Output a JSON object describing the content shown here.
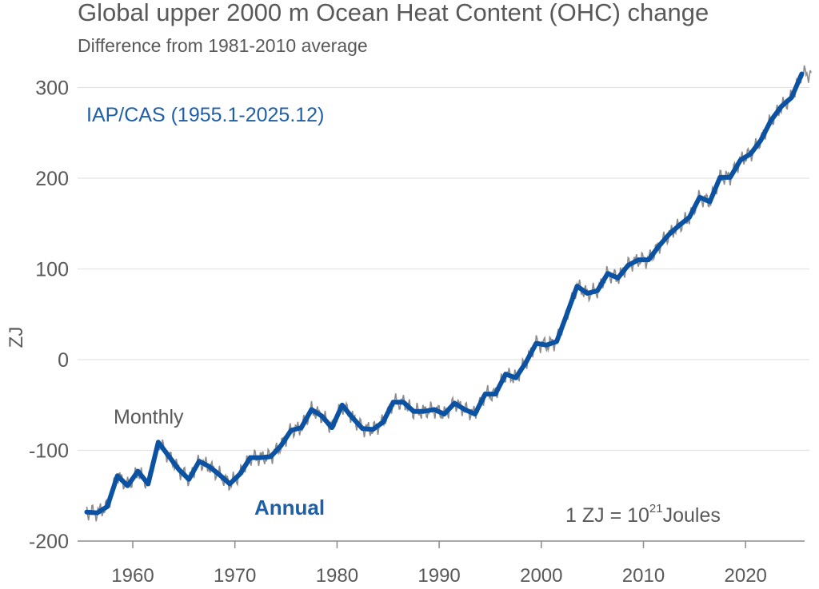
{
  "chart_data": {
    "type": "line",
    "title": "Global upper 2000 m Ocean Heat Content (OHC) change",
    "subtitle": "Difference from 1981-2010 average",
    "xlabel": "",
    "ylabel": "ZJ",
    "ylim": [
      -200,
      330
    ],
    "xlim": [
      1955,
      2026.5
    ],
    "yticks": [
      "300",
      "200",
      "100",
      "0",
      "-100",
      "-200"
    ],
    "ytick_values": [
      300,
      200,
      100,
      0,
      -100,
      -200
    ],
    "xticks": [
      "1960",
      "1970",
      "1980",
      "1990",
      "2000",
      "2010",
      "2020"
    ],
    "xtick_values": [
      1960,
      1970,
      1980,
      1990,
      2000,
      2010,
      2020
    ],
    "grid": "horizontal",
    "annotations": {
      "source": "IAP/CAS (1955.1-2025.12)",
      "unit_prefix": "1 ZJ =  10",
      "unit_exp": "21",
      "unit_suffix": "Joules"
    },
    "series": [
      {
        "name": "Annual",
        "color": "#0b52a3",
        "x": [
          1955,
          1956,
          1957,
          1958,
          1959,
          1960,
          1961,
          1962,
          1963,
          1964,
          1965,
          1966,
          1967,
          1968,
          1969,
          1970,
          1971,
          1972,
          1973,
          1974,
          1975,
          1976,
          1977,
          1978,
          1979,
          1980,
          1981,
          1982,
          1983,
          1984,
          1985,
          1986,
          1987,
          1988,
          1989,
          1990,
          1991,
          1992,
          1993,
          1994,
          1995,
          1996,
          1997,
          1998,
          1999,
          2000,
          2001,
          2002,
          2003,
          2004,
          2005,
          2006,
          2007,
          2008,
          2009,
          2010,
          2011,
          2012,
          2013,
          2014,
          2015,
          2016,
          2017,
          2018,
          2019,
          2020,
          2021,
          2022,
          2023,
          2024,
          2025
        ],
        "values": [
          -168,
          -169,
          -162,
          -128,
          -139,
          -123,
          -137,
          -91,
          -106,
          -121,
          -132,
          -112,
          -118,
          -127,
          -137,
          -126,
          -108,
          -108,
          -107,
          -95,
          -78,
          -75,
          -55,
          -62,
          -75,
          -50,
          -64,
          -76,
          -77,
          -69,
          -47,
          -47,
          -57,
          -57,
          -55,
          -60,
          -48,
          -55,
          -60,
          -38,
          -38,
          -16,
          -20,
          -3,
          18,
          16,
          20,
          50,
          81,
          73,
          76,
          95,
          90,
          104,
          110,
          110,
          125,
          138,
          148,
          157,
          179,
          174,
          201,
          201,
          220,
          227,
          242,
          264,
          279,
          289,
          315
        ]
      },
      {
        "name": "Monthly",
        "color": "#8c8c8c"
      }
    ]
  }
}
